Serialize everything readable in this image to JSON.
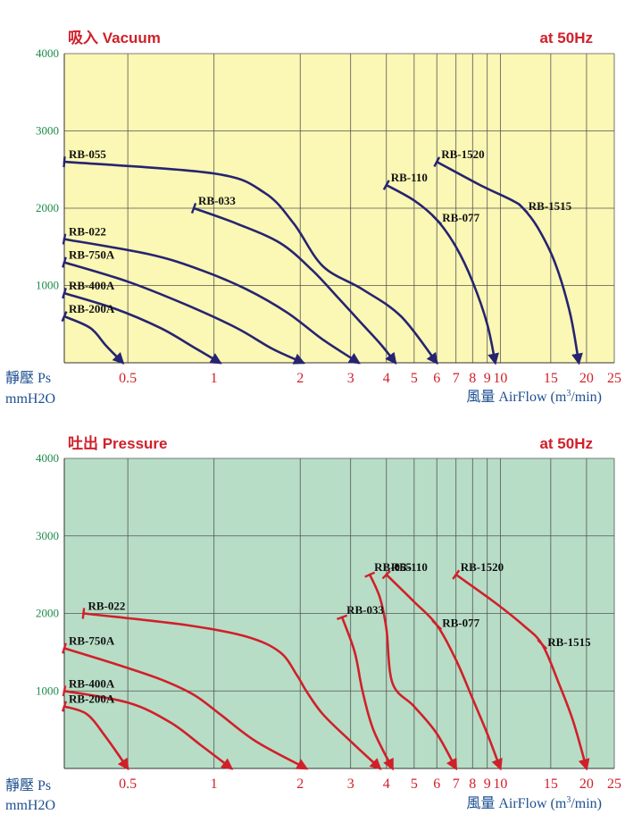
{
  "colors": {
    "title": "#d0202a",
    "grid": "#555555",
    "ytick": "#1d8a4a",
    "xtick": "#d0202a",
    "axis_label": "#1d4f91"
  },
  "chart_data": [
    {
      "type": "line",
      "title": "吸入 Vacuum",
      "subtitle": "at 50Hz",
      "xlabel_main": "風量 AirFlow (m",
      "xlabel_sup": "3",
      "xlabel_tail": "/min)",
      "ylabel": "靜壓 Ps",
      "ylabel_unit": "mmH2O",
      "x_scale": "log",
      "xlim": [
        0.3,
        25
      ],
      "ylim": [
        0,
        4000
      ],
      "x_ticks": [
        0.5,
        1,
        2,
        3,
        4,
        5,
        6,
        7,
        8,
        9,
        10,
        15,
        20,
        25
      ],
      "x_tick_labels": [
        "0.5",
        "1",
        "2",
        "3",
        "4",
        "5",
        "6",
        "7",
        "8",
        "9",
        "10",
        "15",
        "20",
        "25"
      ],
      "y_ticks": [
        1000,
        2000,
        3000,
        4000
      ],
      "y_tick_labels": [
        "1000",
        "2000",
        "3000",
        "4000"
      ],
      "background": "#fbf7b4",
      "line_color": "#262471",
      "series": [
        {
          "name": "RB-055",
          "x": [
            0.3,
            1.0,
            1.5,
            1.9,
            2.4,
            3.3,
            4.5,
            6.0
          ],
          "y": [
            2600,
            2450,
            2200,
            1800,
            1250,
            950,
            600,
            0
          ]
        },
        {
          "name": "RB-033",
          "x": [
            0.85,
            1.2,
            1.7,
            2.2,
            2.7,
            3.2,
            3.8,
            4.3
          ],
          "y": [
            2000,
            1800,
            1550,
            1200,
            850,
            550,
            250,
            0
          ]
        },
        {
          "name": "RB-022",
          "x": [
            0.3,
            0.6,
            0.9,
            1.3,
            1.8,
            2.4,
            3.2
          ],
          "y": [
            1600,
            1400,
            1200,
            950,
            650,
            300,
            0
          ]
        },
        {
          "name": "RB-750A",
          "x": [
            0.3,
            0.5,
            0.8,
            1.2,
            1.6,
            2.05
          ],
          "y": [
            1300,
            1050,
            750,
            450,
            180,
            0
          ]
        },
        {
          "name": "RB-400A",
          "x": [
            0.3,
            0.45,
            0.65,
            0.85,
            1.05
          ],
          "y": [
            900,
            700,
            450,
            200,
            0
          ]
        },
        {
          "name": "RB-200A",
          "x": [
            0.3,
            0.37,
            0.42,
            0.48
          ],
          "y": [
            600,
            450,
            220,
            0
          ]
        },
        {
          "name": "RB-110",
          "x": [
            4.0,
            5.0,
            6.0,
            7.0,
            8.0,
            9.0,
            9.6
          ],
          "y": [
            2300,
            2100,
            1850,
            1500,
            1050,
            500,
            0
          ]
        },
        {
          "name": "RB-1520",
          "x": [
            6.0,
            8.5,
            11.0,
            12.0,
            13.5,
            15.5,
            17.5,
            18.8
          ],
          "y": [
            2600,
            2300,
            2100,
            2000,
            1750,
            1300,
            650,
            0
          ]
        }
      ],
      "marks": [
        {
          "name": "RB-077",
          "x": 6.0,
          "y": 1850
        },
        {
          "name": "RB-1515",
          "x": 12.0,
          "y": 2000
        }
      ]
    },
    {
      "type": "line",
      "title": "吐出 Pressure",
      "subtitle": "at 50Hz",
      "xlabel_main": "風量 AirFlow (m",
      "xlabel_sup": "3",
      "xlabel_tail": "/min)",
      "ylabel": "靜壓 Ps",
      "ylabel_unit": "mmH2O",
      "x_scale": "log",
      "xlim": [
        0.3,
        25
      ],
      "ylim": [
        0,
        4000
      ],
      "x_ticks": [
        0.5,
        1,
        2,
        3,
        4,
        5,
        6,
        7,
        8,
        9,
        10,
        15,
        20,
        25
      ],
      "x_tick_labels": [
        "0.5",
        "1",
        "2",
        "3",
        "4",
        "5",
        "6",
        "7",
        "8",
        "9",
        "10",
        "15",
        "20",
        "25"
      ],
      "y_ticks": [
        1000,
        2000,
        3000,
        4000
      ],
      "y_tick_labels": [
        "1000",
        "2000",
        "3000",
        "4000"
      ],
      "background": "#b7ddc6",
      "line_color": "#d0202a",
      "series": [
        {
          "name": "RB-022",
          "x": [
            0.35,
            0.8,
            1.3,
            1.7,
            1.95,
            2.1,
            2.4,
            3.0,
            3.8
          ],
          "y": [
            2000,
            1850,
            1700,
            1500,
            1200,
            1000,
            700,
            350,
            0
          ]
        },
        {
          "name": "RB-750A",
          "x": [
            0.3,
            0.45,
            0.65,
            0.85,
            1.05,
            1.4,
            2.1
          ],
          "y": [
            1550,
            1350,
            1150,
            950,
            700,
            350,
            0
          ]
        },
        {
          "name": "RB-400A",
          "x": [
            0.3,
            0.5,
            0.7,
            0.9,
            1.15
          ],
          "y": [
            1000,
            850,
            600,
            300,
            0
          ]
        },
        {
          "name": "RB-200A",
          "x": [
            0.3,
            0.36,
            0.42,
            0.5
          ],
          "y": [
            800,
            700,
            400,
            0
          ]
        },
        {
          "name": "RB-055",
          "x": [
            3.5,
            3.8,
            4.0,
            4.2,
            5.0,
            6.0,
            7.0
          ],
          "y": [
            2500,
            2200,
            1800,
            1100,
            800,
            450,
            0
          ]
        },
        {
          "name": "RB-033",
          "x": [
            2.8,
            3.1,
            3.3,
            3.6,
            4.2
          ],
          "y": [
            1950,
            1500,
            1000,
            500,
            0
          ]
        },
        {
          "name": "RB-110",
          "x": [
            4.0,
            5.0,
            6.0,
            7.0,
            8.0,
            9.0,
            10.0
          ],
          "y": [
            2500,
            2150,
            1850,
            1400,
            900,
            450,
            0
          ]
        },
        {
          "name": "RB-1520",
          "x": [
            7.0,
            9.5,
            12.0,
            14.0,
            16.0,
            18.0,
            20.0
          ],
          "y": [
            2500,
            2150,
            1850,
            1600,
            1100,
            600,
            0
          ]
        }
      ],
      "marks": [
        {
          "name": "RB-077",
          "x": 6.0,
          "y": 1850
        },
        {
          "name": "RB-1515",
          "x": 14.0,
          "y": 1600
        }
      ]
    }
  ]
}
